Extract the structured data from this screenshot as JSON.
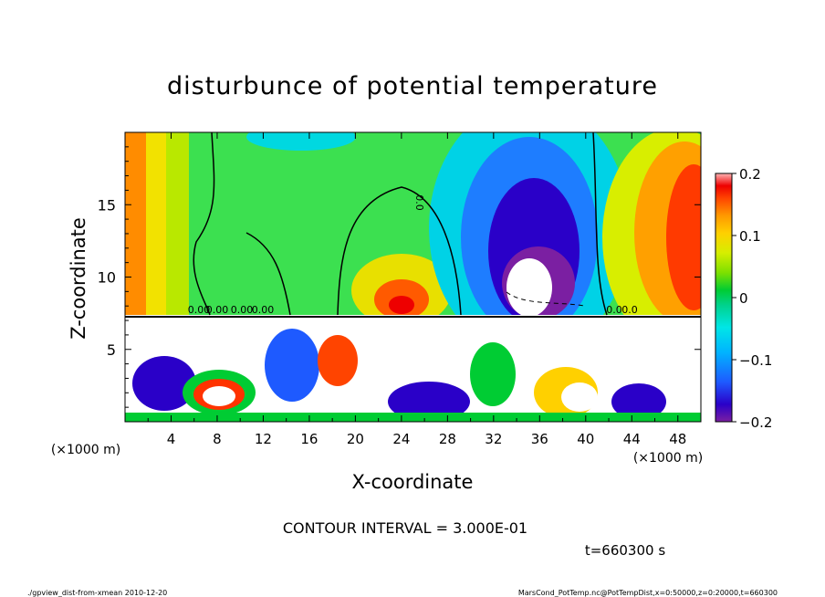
{
  "chart_data": {
    "type": "heatmap",
    "title": "disturbunce of potential temperature",
    "xlabel": "X-coordinate",
    "ylabel": "Z-coordinate",
    "x_unit": "(×1000 m)",
    "y_unit": "(×1000 m)",
    "xlim": [
      0,
      50
    ],
    "ylim": [
      0,
      20
    ],
    "x_ticks": [
      "4",
      "8",
      "12",
      "16",
      "20",
      "24",
      "28",
      "32",
      "36",
      "40",
      "44",
      "48"
    ],
    "y_ticks": [
      "5",
      "10",
      "15"
    ],
    "colorbar": {
      "min": -0.2,
      "max": 0.2,
      "tick_labels": [
        "0.2",
        "0.1",
        "0",
        "−0.1",
        "−0.2"
      ],
      "tick_values": [
        0.2,
        0.1,
        0,
        -0.1,
        -0.2
      ]
    },
    "contour_labels": [
      "0.00",
      "0.00",
      "0.00",
      "0.00",
      "0.0",
      "0.0",
      "0.0"
    ],
    "contour_interval_text": "CONTOUR INTERVAL = 3.000E-01",
    "time_text": "t=660300 s",
    "footer_left": "./gpview_dist-from-xmean  2010-12-20",
    "footer_right": "MarsCond_PotTemp.nc@PotTempDist,x=0:50000,z=0:20000,t=660300",
    "colors": {
      "scale": [
        "#7b1fa2",
        "#2a00c8",
        "#1e5aff",
        "#00b4ff",
        "#00e6e6",
        "#00d28c",
        "#00cc33",
        "#7de000",
        "#d6ee00",
        "#ffd000",
        "#ff9900",
        "#ff4400",
        "#ee0000",
        "#ffb4b4"
      ]
    }
  }
}
